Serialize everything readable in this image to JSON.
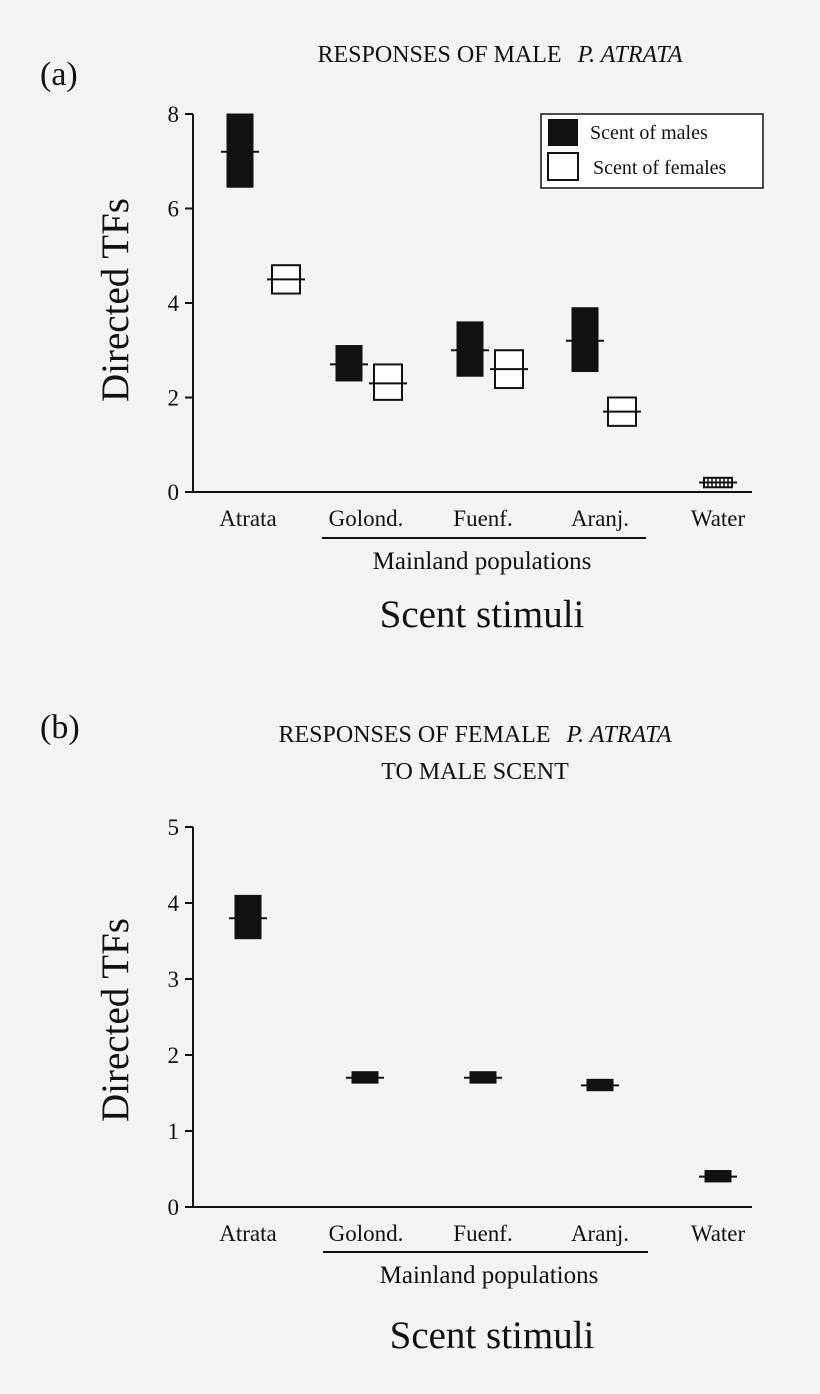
{
  "chart_data": [
    {
      "type": "range",
      "panel_label": "(a)",
      "title": "RESPONSES OF MALE",
      "title_italic": "P. ATRATA",
      "title_line2": "",
      "xlabel": "Scent stimuli",
      "ylabel": "Directed TFs",
      "ylim": [
        0,
        8
      ],
      "yticks": [
        "0",
        "2",
        "4",
        "6",
        "8"
      ],
      "categories": [
        "Atrata",
        "Golond.",
        "Fuenf.",
        "Aranj.",
        "Water"
      ],
      "group_label": "Mainland populations",
      "group_members": [
        "Golond.",
        "Fuenf.",
        "Aranj."
      ],
      "legend": [
        "Scent of males",
        "Scent of females"
      ],
      "series": [
        {
          "name": "Scent of males",
          "color": "#111111",
          "mean": [
            7.2,
            2.7,
            3.0,
            3.2,
            null
          ],
          "low": [
            6.45,
            2.35,
            2.45,
            2.55,
            null
          ],
          "high": [
            8.0,
            3.1,
            3.6,
            3.9,
            null
          ]
        },
        {
          "name": "Scent of females",
          "color": "#ffffff",
          "mean": [
            4.5,
            2.3,
            2.6,
            1.7,
            null
          ],
          "low": [
            4.2,
            1.95,
            2.2,
            1.4,
            null
          ],
          "high": [
            4.8,
            2.7,
            3.0,
            2.0,
            null
          ]
        },
        {
          "name": "Water",
          "color": "#striped",
          "mean": [
            null,
            null,
            null,
            null,
            0.2
          ],
          "low": [
            null,
            null,
            null,
            null,
            0.1
          ],
          "high": [
            null,
            null,
            null,
            null,
            0.3
          ]
        }
      ]
    },
    {
      "type": "range",
      "panel_label": "(b)",
      "title": "RESPONSES OF FEMALE",
      "title_italic": "P. ATRATA",
      "title_line2": "TO MALE SCENT",
      "xlabel": "Scent stimuli",
      "ylabel": "Directed TFs",
      "ylim": [
        0,
        5
      ],
      "yticks": [
        "0",
        "1",
        "2",
        "3",
        "4",
        "5"
      ],
      "categories": [
        "Atrata",
        "Golond.",
        "Fuenf.",
        "Aranj.",
        "Water"
      ],
      "group_label": "Mainland populations",
      "group_members": [
        "Golond.",
        "Fuenf.",
        "Aranj."
      ],
      "series": [
        {
          "name": "Male scent",
          "color": "#111111",
          "mean": [
            3.8,
            1.7,
            1.7,
            1.6,
            0.4
          ],
          "low": [
            3.53,
            1.63,
            1.63,
            1.53,
            0.33
          ],
          "high": [
            4.1,
            1.78,
            1.78,
            1.68,
            0.48
          ]
        }
      ]
    }
  ]
}
